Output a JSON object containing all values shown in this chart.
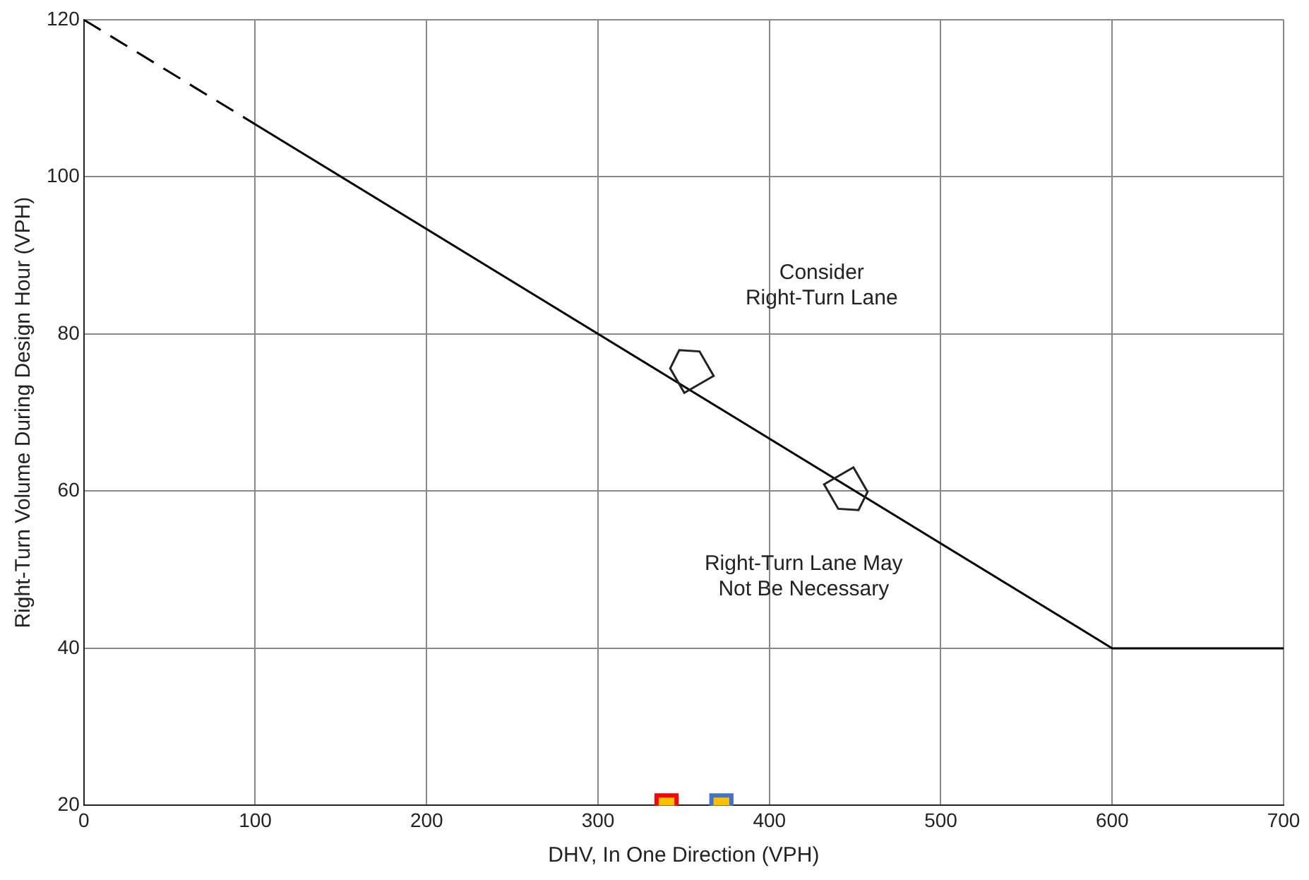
{
  "chart_data": {
    "type": "line",
    "xlabel": "DHV, In One Direction (VPH)",
    "ylabel": "Right-Turn Volume During Design Hour (VPH)",
    "xlim": [
      0,
      700
    ],
    "ylim": [
      20,
      120
    ],
    "xticks": [
      0,
      100,
      200,
      300,
      400,
      500,
      600,
      700
    ],
    "yticks": [
      20,
      40,
      60,
      80,
      100,
      120
    ],
    "grid": true,
    "legend": false,
    "annotations": [
      "Consider\nRight-Turn Lane",
      "Right-Turn Lane May\nNot Be Necessary"
    ],
    "series": [
      {
        "type": "line",
        "x": [
          0,
          100
        ],
        "values": [
          120,
          106.7
        ],
        "color": "#000000",
        "line_style": "dashed",
        "marker": "none"
      },
      {
        "type": "line",
        "x": [
          100,
          600,
          700
        ],
        "values": [
          106.7,
          40,
          40
        ],
        "color": "#000000",
        "line_style": "solid",
        "marker": "none"
      },
      {
        "type": "scatter",
        "x": [
          340
        ],
        "values": [
          20
        ],
        "color": "#ff0000",
        "marker": "square"
      },
      {
        "type": "scatter",
        "x": [
          372
        ],
        "values": [
          20
        ],
        "color": "#4472c4",
        "marker": "square"
      }
    ]
  }
}
